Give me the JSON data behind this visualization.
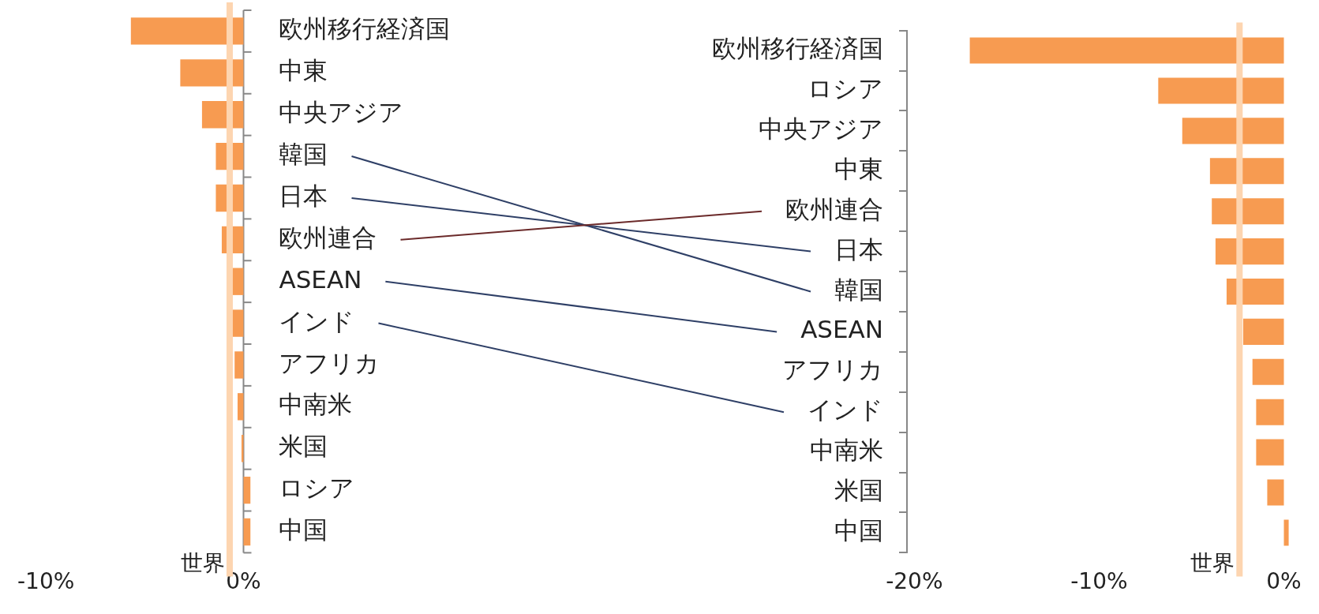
{
  "chart_data": [
    {
      "type": "bar",
      "orientation": "horizontal",
      "categories": [
        "欧州移行経済国",
        "中東",
        "中央アジア",
        "韓国",
        "日本",
        "欧州連合",
        "ASEAN",
        "インド",
        "アフリカ",
        "中南米",
        "米国",
        "ロシア",
        "中国"
      ],
      "values": [
        -5.7,
        -3.2,
        -2.1,
        -1.4,
        -1.4,
        -1.1,
        -0.6,
        -0.6,
        -0.45,
        -0.3,
        -0.1,
        0.35,
        0.35
      ],
      "color": "#f79b51",
      "xlim": [
        -10,
        0.5
      ],
      "xticks": [
        {
          "value": -10,
          "label": "-10%"
        },
        {
          "value": 0,
          "label": "0%"
        }
      ],
      "ref_lines": [
        {
          "axis": "x",
          "value": -0.7,
          "label": "世界",
          "color": "#fdd5b0"
        }
      ]
    },
    {
      "type": "bar",
      "orientation": "horizontal",
      "categories": [
        "欧州移行経済国",
        "ロシア",
        "中央アジア",
        "中東",
        "欧州連合",
        "日本",
        "韓国",
        "ASEAN",
        "アフリカ",
        "インド",
        "中南米",
        "米国",
        "中国"
      ],
      "values": [
        -17.0,
        -6.8,
        -5.5,
        -4.0,
        -3.9,
        -3.7,
        -3.1,
        -2.2,
        -1.7,
        -1.5,
        -1.5,
        -0.9,
        0.26
      ],
      "color": "#f79b51",
      "xlim": [
        -20.4,
        0.3
      ],
      "xticks": [
        {
          "value": -20,
          "label": "-20%"
        },
        {
          "value": -10,
          "label": "-10%"
        },
        {
          "value": 0,
          "label": "0%"
        }
      ],
      "ref_lines": [
        {
          "axis": "x",
          "value": -2.4,
          "label": "世界",
          "color": "#fdd5b0"
        }
      ]
    }
  ]
}
